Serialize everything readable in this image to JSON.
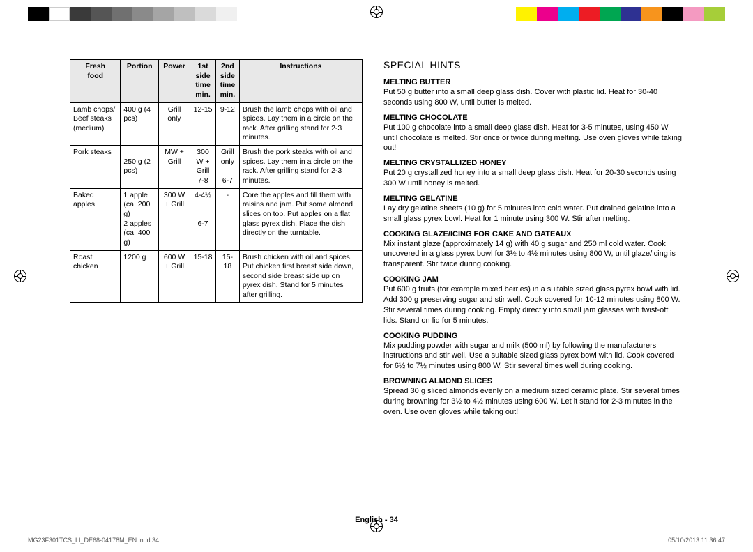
{
  "colorbar_left": [
    "#000000",
    "#ffffff",
    "#3a3a3a",
    "#555555",
    "#707070",
    "#8a8a8a",
    "#a5a5a5",
    "#bfbfbf",
    "#dadada",
    "#f0f0f0"
  ],
  "colorbar_right": [
    "#fff200",
    "#ec008c",
    "#00aeef",
    "#ed1c24",
    "#00a651",
    "#2e3192",
    "#f7941d",
    "#000000",
    "#f49ac1",
    "#a6ce39"
  ],
  "table": {
    "headers": [
      "Fresh food",
      "Portion",
      "Power",
      "1st side time min.",
      "2nd side time min.",
      "Instructions"
    ],
    "rows": [
      {
        "food": "Lamb chops/ Beef steaks (medium)",
        "portion": "400 g (4 pcs)",
        "power": "Grill only",
        "t1": "12-15",
        "t2": "9-12",
        "instr": "Brush the lamb chops with oil and spices. Lay them in a circle on the rack. After grilling stand for 2-3 minutes."
      },
      {
        "food": "Pork steaks",
        "portion": "\n250 g (2 pcs)",
        "power": "MW + Grill",
        "t1": "300 W + Grill\n7-8",
        "t2": "Grill only\n\n6-7",
        "instr": "Brush the pork steaks with oil and spices. Lay them in a circle on the rack. After grilling stand for 2-3 minutes."
      },
      {
        "food": "Baked apples",
        "portion": "1 apple (ca. 200 g)\n2 apples (ca. 400 g)",
        "power": "300 W + Grill",
        "t1": "4-4½\n\n\n6-7",
        "t2": "-",
        "instr": "Core the apples and fill them with raisins and jam. Put some almond slices on top. Put apples on a flat glass pyrex dish. Place the dish directly on the turntable."
      },
      {
        "food": "Roast chicken",
        "portion": "1200 g",
        "power": "600 W + Grill",
        "t1": "15-18",
        "t2": "15-18",
        "instr": "Brush chicken with oil and spices. Put chicken first breast side down, second side breast side up on pyrex dish. Stand for 5 minutes after grilling."
      }
    ]
  },
  "hints_title": "SPECIAL HINTS",
  "hints": [
    {
      "h": "Melting Butter",
      "p": "Put 50 g butter into a small deep glass dish. Cover with plastic lid. Heat for 30-40 seconds using 800 W, until butter is melted."
    },
    {
      "h": "Melting Chocolate",
      "p": "Put 100 g chocolate into a small deep glass dish. Heat for 3-5 minutes, using 450 W until chocolate is melted. Stir once or twice during melting. Use oven gloves while taking out!"
    },
    {
      "h": "Melting Crystallized Honey",
      "p": "Put 20 g crystallized honey into a small deep glass dish. Heat for 20-30 seconds using 300 W until honey is melted."
    },
    {
      "h": "Melting Gelatine",
      "p": "Lay dry gelatine sheets (10 g) for 5 minutes into cold water. Put drained gelatine into a small glass pyrex bowl. Heat for 1 minute using 300 W. Stir after melting."
    },
    {
      "h": "Cooking Glaze/Icing for Cake and Gateaux",
      "p": "Mix instant glaze (approximately 14 g) with 40 g sugar and 250 ml cold water. Cook uncovered in a glass pyrex bowl for 3½ to 4½ minutes using 800 W, until glaze/icing is transparent. Stir twice during cooking."
    },
    {
      "h": "Cooking Jam",
      "p": "Put 600 g fruits (for example mixed berries) in a suitable sized glass pyrex bowl with lid. Add 300 g preserving sugar and stir well. Cook covered for 10-12 minutes using 800 W. Stir several times during cooking. Empty directly into small jam glasses with twist-off lids. Stand on lid for 5 minutes."
    },
    {
      "h": "Cooking Pudding",
      "p": "Mix pudding powder with sugar and milk (500 ml) by following the manufacturers instructions and stir well. Use a suitable sized glass pyrex bowl with lid. Cook covered for 6½ to 7½ minutes using 800 W. Stir several times well during cooking."
    },
    {
      "h": "Browning Almond Slices",
      "p": "Spread 30 g sliced almonds evenly on a medium sized ceramic plate. Stir several times during browning for 3½ to 4½ minutes using 600 W. Let it stand for 2-3 minutes in the oven. Use oven gloves while taking out!"
    }
  ],
  "footer_center": "English - 34",
  "footer_left": "MG23F301TCS_LI_DE68-04178M_EN.indd   34",
  "footer_right": "05/10/2013   11:36:47"
}
